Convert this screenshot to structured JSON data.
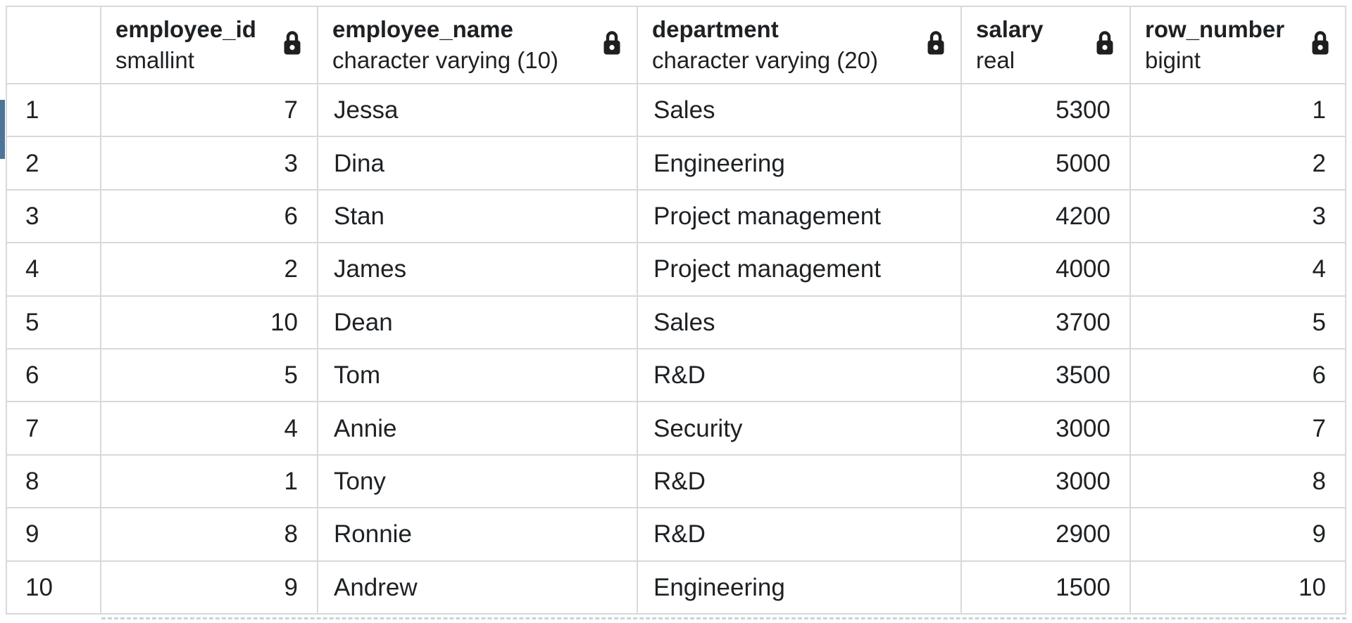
{
  "grid": {
    "corner_label": "",
    "columns": [
      {
        "label": "employee_id",
        "type": "smallint",
        "align": "right",
        "icon": "lock-icon"
      },
      {
        "label": "employee_name",
        "type": "character varying (10)",
        "align": "left",
        "icon": "lock-icon"
      },
      {
        "label": "department",
        "type": "character varying (20)",
        "align": "left",
        "icon": "lock-icon"
      },
      {
        "label": "salary",
        "type": "real",
        "align": "right",
        "icon": "lock-icon"
      },
      {
        "label": "row_number",
        "type": "bigint",
        "align": "right",
        "icon": "lock-icon"
      }
    ],
    "rows": [
      {
        "row_label": "1",
        "cells": [
          "7",
          "Jessa",
          "Sales",
          "5300",
          "1"
        ]
      },
      {
        "row_label": "2",
        "cells": [
          "3",
          "Dina",
          "Engineering",
          "5000",
          "2"
        ]
      },
      {
        "row_label": "3",
        "cells": [
          "6",
          "Stan",
          "Project management",
          "4200",
          "3"
        ]
      },
      {
        "row_label": "4",
        "cells": [
          "2",
          "James",
          "Project management",
          "4000",
          "4"
        ]
      },
      {
        "row_label": "5",
        "cells": [
          "10",
          "Dean",
          "Sales",
          "3700",
          "5"
        ]
      },
      {
        "row_label": "6",
        "cells": [
          "5",
          "Tom",
          "R&D",
          "3500",
          "6"
        ]
      },
      {
        "row_label": "7",
        "cells": [
          "4",
          "Annie",
          "Security",
          "3000",
          "7"
        ]
      },
      {
        "row_label": "8",
        "cells": [
          "1",
          "Tony",
          "R&D",
          "3000",
          "8"
        ]
      },
      {
        "row_label": "9",
        "cells": [
          "8",
          "Ronnie",
          "R&D",
          "2900",
          "9"
        ]
      },
      {
        "row_label": "10",
        "cells": [
          "9",
          "Andrew",
          "Engineering",
          "1500",
          "10"
        ]
      }
    ]
  },
  "colors": {
    "grid_line": "#d6dadd",
    "text": "#1e2124",
    "scrollbar_thumb": "#4e7499",
    "lock_icon": "#1f1f1f",
    "background": "#ffffff"
  }
}
